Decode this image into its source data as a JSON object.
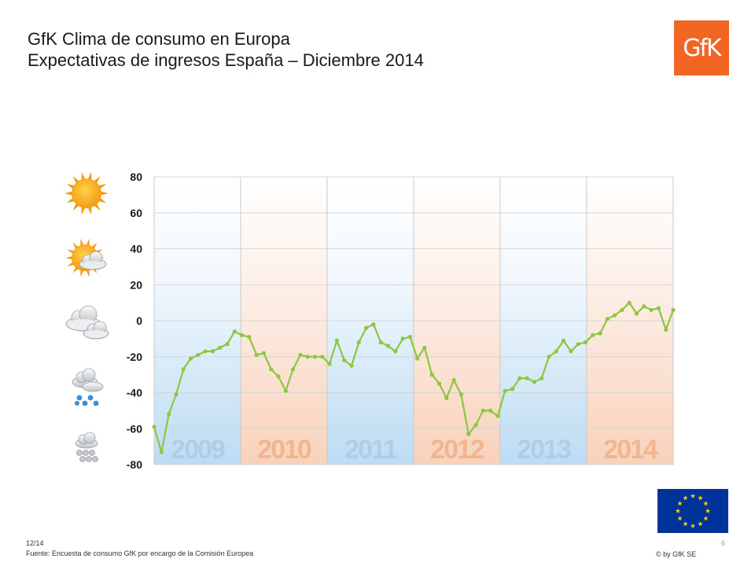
{
  "header": {
    "title_line1": "GfK Clima de consumo en Europa",
    "title_line2": "Expectativas de ingresos España – Diciembre 2014"
  },
  "logo": {
    "text": "GfK",
    "color": "#f26522"
  },
  "chart_data": {
    "type": "line",
    "title": "",
    "xlabel": "",
    "ylabel": "",
    "ylim": [
      -80,
      80
    ],
    "yticks": [
      80,
      60,
      40,
      20,
      0,
      -20,
      -40,
      -60,
      -80
    ],
    "grid": true,
    "year_panels": [
      {
        "label": "2009",
        "tone": "blue"
      },
      {
        "label": "2010",
        "tone": "orange"
      },
      {
        "label": "2011",
        "tone": "blue"
      },
      {
        "label": "2012",
        "tone": "orange"
      },
      {
        "label": "2013",
        "tone": "blue"
      },
      {
        "label": "2014",
        "tone": "orange"
      }
    ],
    "series": [
      {
        "color": "#8dc63f",
        "values": [
          -59,
          -73,
          -52,
          -41,
          -27,
          -21,
          -19,
          -17,
          -17,
          -15,
          -13,
          -6,
          -8,
          -9,
          -19,
          -18,
          -27,
          -31,
          -39,
          -27,
          -19,
          -20,
          -20,
          -20,
          -24,
          -11,
          -22,
          -25,
          -12,
          -4,
          -2,
          -12,
          -14,
          -17,
          -10,
          -9,
          -21,
          -15,
          -30,
          -35,
          -43,
          -33,
          -41,
          -63,
          -58,
          -50,
          -50,
          -53,
          -39,
          -38,
          -32,
          -32,
          -34,
          -32,
          -20,
          -17,
          -11,
          -17,
          -13,
          -12,
          -8,
          -7,
          1,
          3,
          6,
          10,
          4,
          8,
          6,
          7,
          -5,
          6
        ]
      }
    ],
    "weather_icons": [
      "sun-icon",
      "sun-cloud-icon",
      "cloud-icon",
      "rain-icon",
      "snow-icon"
    ]
  },
  "eu_flag": {
    "color": "#003399",
    "star_color": "#ffcc00"
  },
  "footer": {
    "date": "12/14",
    "source": "Fuente: Encuesta de consumo GfK por encargo de la Comisión Europea",
    "copyright": "© by GfK SE",
    "page": "6"
  }
}
